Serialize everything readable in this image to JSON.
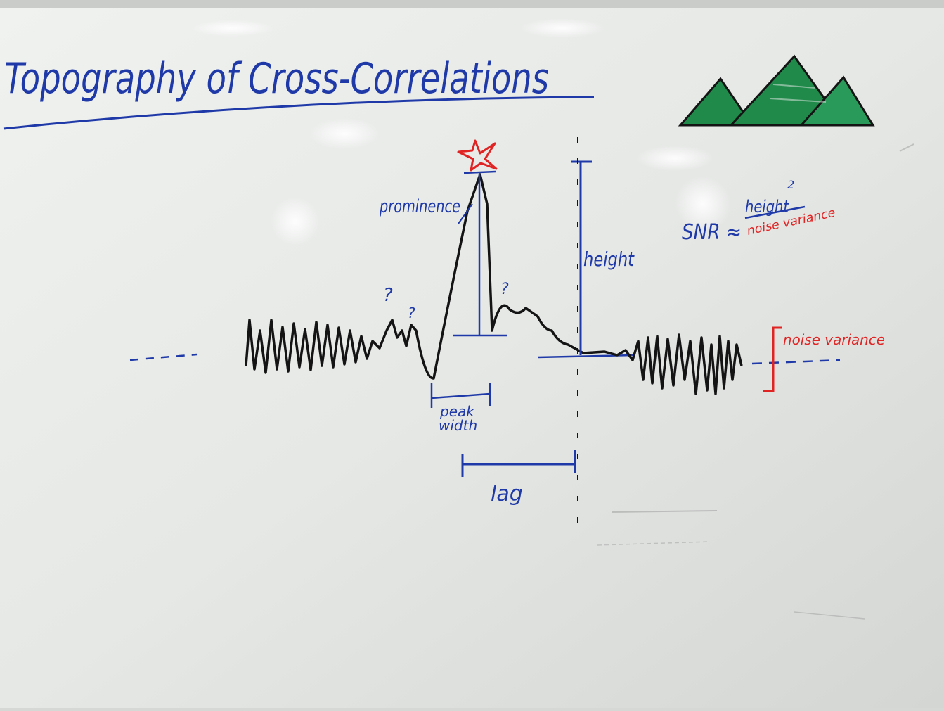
{
  "board": {
    "title": "Topography of Cross-Correlations",
    "labels": {
      "prominence": "prominence",
      "height": "height",
      "peak_width": [
        "peak",
        "width"
      ],
      "lag": "lag",
      "noise_variance_right": "noise variance",
      "question_marks": [
        "?",
        "?",
        "?"
      ]
    },
    "snr": {
      "lhs": "SNR ≈",
      "numerator": "height",
      "exponent": "2",
      "denominator": "noise variance"
    },
    "colors": {
      "blue_marker": "#1f3aa8",
      "red_marker": "#e02424",
      "black_marker": "#141414",
      "green_marker": "#1f8a4a",
      "board": "#e8eae8"
    },
    "icons": [
      "star-icon",
      "mountains-icon"
    ]
  }
}
